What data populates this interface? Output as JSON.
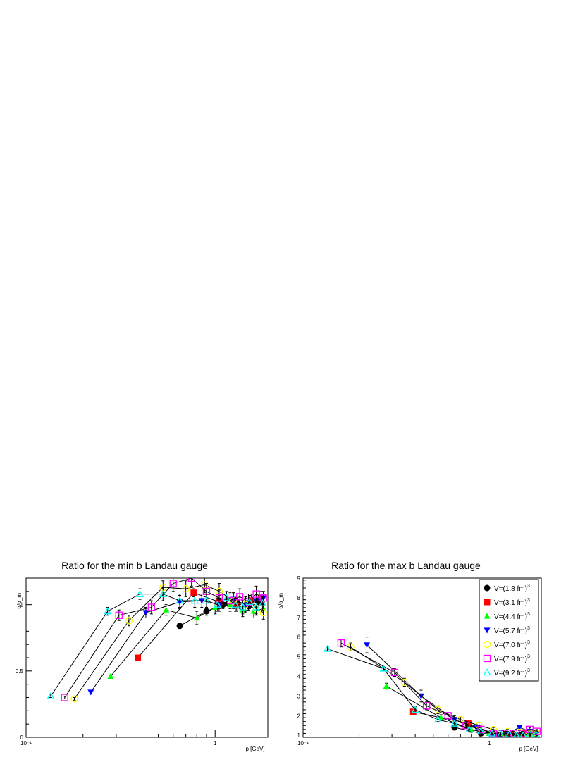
{
  "chart_data": [
    {
      "type": "scatter",
      "title": "Ratio for the min b Landau gauge",
      "xlabel": "p [GeV]",
      "ylabel": "α/α_m",
      "x_scale": "log",
      "xlim": [
        0.1,
        1.9
      ],
      "ylim": [
        0,
        1.2
      ],
      "y_ticks": [
        0,
        0.5,
        1
      ],
      "x_tick_labels": [
        "10⁻¹",
        "1"
      ],
      "grid": false,
      "series": [
        {
          "name": "V=(1.8 fm)",
          "x": [
            0.65,
            0.9,
            1.1,
            1.3,
            1.5,
            1.7
          ],
          "y": [
            0.84,
            0.95,
            1.0,
            1.02,
            1.0,
            1.02
          ],
          "err": [
            0.01,
            0.03,
            0.03,
            0.03,
            0.03,
            0.03
          ]
        },
        {
          "name": "V=(3.1 fm)",
          "x": [
            0.39,
            0.77,
            1.05,
            1.3,
            1.55,
            1.75
          ],
          "y": [
            0.6,
            1.09,
            1.02,
            1.0,
            1.03,
            1.05
          ],
          "err": [
            0.01,
            0.03,
            0.05,
            0.05,
            0.05,
            0.05
          ]
        },
        {
          "name": "V=(4.4 fm)",
          "x": [
            0.28,
            0.55,
            0.8,
            1.0,
            1.2,
            1.4,
            1.6,
            1.8
          ],
          "y": [
            0.46,
            0.96,
            0.9,
            0.98,
            1.0,
            0.96,
            0.95,
            0.97
          ],
          "err": [
            0.01,
            0.04,
            0.05,
            0.05,
            0.05,
            0.05,
            0.05,
            0.05
          ]
        },
        {
          "name": "V=(5.7 fm)",
          "x": [
            0.22,
            0.43,
            0.65,
            0.85,
            1.05,
            1.25,
            1.45,
            1.65,
            1.8
          ],
          "y": [
            0.34,
            0.94,
            1.02,
            1.03,
            1.0,
            1.04,
            1.0,
            1.03,
            1.05
          ],
          "err": [
            0.01,
            0.04,
            0.05,
            0.05,
            0.05,
            0.05,
            0.05,
            0.05,
            0.05
          ]
        },
        {
          "name": "V=(7.0 fm)",
          "x": [
            0.18,
            0.35,
            0.53,
            0.7,
            0.88,
            1.05,
            1.25,
            1.45,
            1.65,
            1.8
          ],
          "y": [
            0.29,
            0.88,
            1.13,
            1.12,
            1.15,
            1.1,
            1.03,
            1.0,
            0.97,
            0.94
          ],
          "err": [
            0.01,
            0.04,
            0.05,
            0.06,
            0.06,
            0.06,
            0.06,
            0.06,
            0.05,
            0.05
          ]
        },
        {
          "name": "V=(7.9 fm)",
          "x": [
            0.16,
            0.31,
            0.46,
            0.6,
            0.75,
            0.9,
            1.05,
            1.2,
            1.35,
            1.5,
            1.65,
            1.8
          ],
          "y": [
            0.3,
            0.92,
            0.98,
            1.16,
            1.2,
            1.1,
            1.05,
            1.03,
            1.06,
            1.02,
            1.08,
            1.05
          ],
          "err": [
            0.01,
            0.04,
            0.05,
            0.06,
            0.06,
            0.06,
            0.06,
            0.06,
            0.06,
            0.06,
            0.06,
            0.05
          ]
        },
        {
          "name": "V=(9.2 fm)",
          "x": [
            0.135,
            0.27,
            0.4,
            0.53,
            0.65,
            0.78,
            0.9,
            1.03,
            1.15,
            1.28,
            1.4,
            1.52,
            1.65,
            1.78
          ],
          "y": [
            0.31,
            0.95,
            1.08,
            1.08,
            1.03,
            1.03,
            1.03,
            1.0,
            1.05,
            1.0,
            0.98,
            1.02,
            0.98,
            1.01
          ],
          "err": [
            0.01,
            0.03,
            0.04,
            0.05,
            0.05,
            0.05,
            0.05,
            0.05,
            0.05,
            0.05,
            0.05,
            0.05,
            0.05,
            0.05
          ]
        }
      ]
    },
    {
      "type": "scatter",
      "title": "Ratio for the max b Landau gauge",
      "xlabel": "p [GeV]",
      "ylabel": "α/α_m",
      "x_scale": "log",
      "xlim": [
        0.1,
        1.9
      ],
      "ylim": [
        0.9,
        9
      ],
      "y_ticks": [
        1,
        2,
        3,
        4,
        5,
        6,
        7,
        8,
        9
      ],
      "x_tick_labels": [
        "10⁻¹",
        "1"
      ],
      "grid": false,
      "legend": {
        "placement": "top-right",
        "superscript": "3"
      },
      "series": [
        {
          "name": "V=(1.8 fm)",
          "x": [
            0.65,
            0.9,
            1.1,
            1.3,
            1.5,
            1.7
          ],
          "y": [
            1.4,
            1.1,
            1.05,
            1.05,
            1.05,
            1.05
          ],
          "err": [
            0.05,
            0.1,
            0.1,
            0.1,
            0.1,
            0.1
          ]
        },
        {
          "name": "V=(3.1 fm)",
          "x": [
            0.39,
            0.77,
            1.05,
            1.3,
            1.55,
            1.75
          ],
          "y": [
            2.2,
            1.6,
            1.1,
            1.05,
            1.1,
            1.1
          ],
          "err": [
            0.1,
            0.1,
            0.1,
            0.1,
            0.1,
            0.1
          ]
        },
        {
          "name": "V=(4.4 fm)",
          "x": [
            0.28,
            0.55,
            0.8,
            1.0,
            1.2,
            1.4,
            1.6,
            1.8
          ],
          "y": [
            3.5,
            1.9,
            1.3,
            1.1,
            1.05,
            1.05,
            1.05,
            1.05
          ],
          "err": [
            0.15,
            0.15,
            0.15,
            0.1,
            0.1,
            0.1,
            0.1,
            0.1
          ]
        },
        {
          "name": "V=(5.7 fm)",
          "x": [
            0.22,
            0.43,
            0.65,
            0.85,
            1.05,
            1.25,
            1.45,
            1.65,
            1.8
          ],
          "y": [
            5.6,
            3.0,
            1.8,
            1.4,
            1.1,
            1.1,
            1.4,
            1.2,
            1.1
          ],
          "err": [
            0.4,
            0.3,
            0.2,
            0.15,
            0.1,
            0.1,
            0.1,
            0.1,
            0.1
          ]
        },
        {
          "name": "V=(7.0 fm)",
          "x": [
            0.18,
            0.35,
            0.53,
            0.7,
            0.88,
            1.05,
            1.25,
            1.45,
            1.65,
            1.8
          ],
          "y": [
            5.5,
            3.7,
            2.3,
            1.8,
            1.5,
            1.3,
            1.2,
            1.15,
            1.1,
            1.1
          ],
          "err": [
            0.2,
            0.2,
            0.2,
            0.15,
            0.15,
            0.1,
            0.1,
            0.1,
            0.1,
            0.1
          ]
        },
        {
          "name": "V=(7.9 fm)",
          "x": [
            0.16,
            0.31,
            0.46,
            0.6,
            0.75,
            0.9,
            1.05,
            1.2,
            1.35,
            1.5,
            1.65,
            1.8
          ],
          "y": [
            5.7,
            4.2,
            2.5,
            2.0,
            1.5,
            1.3,
            1.1,
            1.1,
            1.1,
            1.1,
            1.3,
            1.2
          ],
          "err": [
            0.2,
            0.2,
            0.2,
            0.15,
            0.15,
            0.1,
            0.1,
            0.1,
            0.1,
            0.1,
            0.1,
            0.1
          ]
        },
        {
          "name": "V=(9.2 fm)",
          "x": [
            0.135,
            0.27,
            0.4,
            0.53,
            0.65,
            0.78,
            0.9,
            1.03,
            1.15,
            1.28,
            1.4,
            1.52,
            1.65,
            1.78
          ],
          "y": [
            5.4,
            4.4,
            2.3,
            1.8,
            1.6,
            1.3,
            1.2,
            1.1,
            1.05,
            1.05,
            1.0,
            1.0,
            1.05,
            1.05
          ],
          "err": [
            0.1,
            0.1,
            0.15,
            0.1,
            0.1,
            0.1,
            0.1,
            0.1,
            0.1,
            0.1,
            0.1,
            0.1,
            0.1,
            0.1
          ]
        }
      ]
    }
  ],
  "style": {
    "series_colors": [
      "#000000",
      "#ff0000",
      "#00ff00",
      "#0000ff",
      "#ffff00",
      "#ff00ff",
      "#00ffff"
    ],
    "series_markers": [
      "circle",
      "square",
      "triangle-up",
      "triangle-down",
      "open-circle",
      "open-square",
      "open-triangle"
    ],
    "line_color": "#000000"
  }
}
